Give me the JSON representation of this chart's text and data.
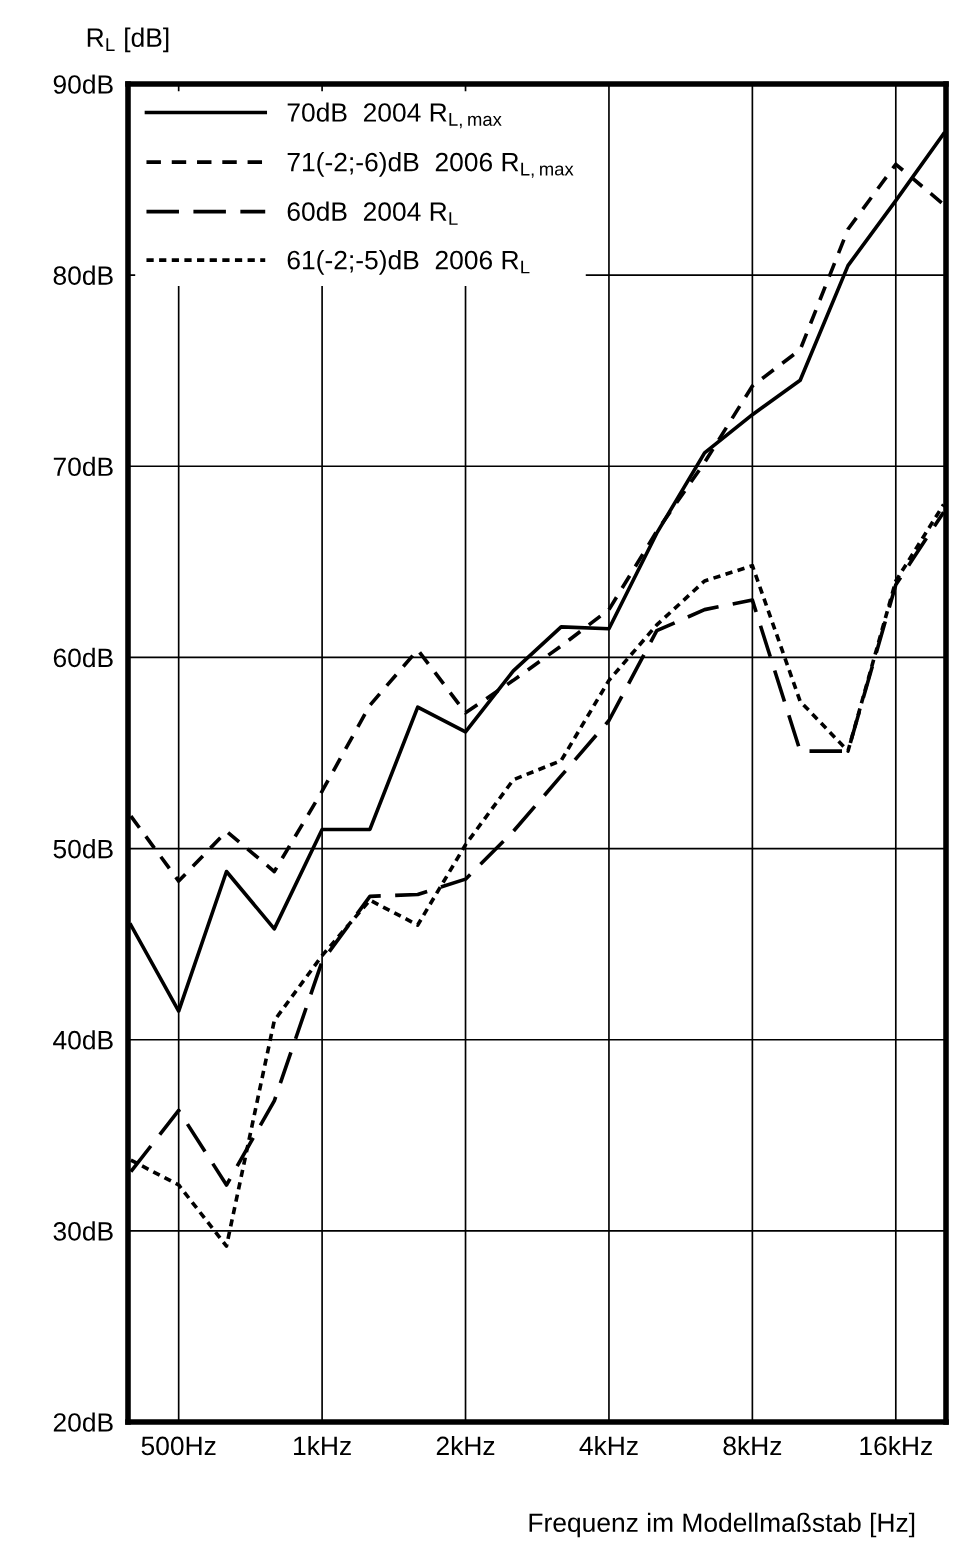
{
  "chart_data": {
    "type": "line",
    "ylabel": "R$_{L}$ [dB]",
    "xlabel": "Frequenz im Modellmaßstab [Hz]",
    "categories": [
      null,
      "500Hz",
      null,
      null,
      "1kHz",
      null,
      null,
      "2kHz",
      null,
      null,
      "4kHz",
      null,
      null,
      "8kHz",
      null,
      null,
      "16kHz",
      null
    ],
    "series": [
      {
        "name": "70dB  2004 R$_{L,max}$",
        "color": "#000000",
        "line_style": "solid",
        "values": [
          46.0,
          41.5,
          48.8,
          45.8,
          51.0,
          51.0,
          57.4,
          56.1,
          59.3,
          61.6,
          61.5,
          66.5,
          70.7,
          72.7,
          74.5,
          80.5,
          83.9,
          87.4
        ]
      },
      {
        "name": "71(-2;-6)dB  2006 R$_{L,max}$",
        "color": "#000000",
        "line_style": "dashed",
        "values": [
          51.7,
          48.3,
          50.9,
          48.8,
          53.0,
          57.5,
          60.4,
          57.1,
          58.8,
          60.6,
          62.5,
          66.6,
          70.2,
          74.2,
          76.1,
          82.4,
          85.8,
          83.7
        ]
      },
      {
        "name": "60dB  2004 R$_{L}$",
        "color": "#000000",
        "line_style": "longdash",
        "values": [
          33.1,
          36.3,
          32.4,
          36.8,
          44.1,
          47.5,
          47.6,
          48.4,
          50.9,
          53.8,
          56.7,
          61.4,
          62.5,
          63.0,
          55.1,
          55.1,
          63.8,
          67.6
        ]
      },
      {
        "name": "61(-2;-5)dB  2006 R$_{L}$",
        "color": "#000000",
        "line_style": "dotted",
        "values": [
          33.7,
          32.4,
          29.2,
          41.0,
          44.4,
          47.3,
          46.0,
          50.2,
          53.6,
          54.6,
          58.8,
          61.7,
          64.0,
          64.8,
          57.7,
          55.1,
          64.0,
          68.0
        ]
      }
    ],
    "ylim": [
      20,
      90
    ],
    "yticks": [
      {
        "value": 20,
        "label": "20dB"
      },
      {
        "value": 30,
        "label": "30dB"
      },
      {
        "value": 40,
        "label": "40dB"
      },
      {
        "value": 50,
        "label": "50dB"
      },
      {
        "value": 60,
        "label": "60dB"
      },
      {
        "value": 70,
        "label": "70dB"
      },
      {
        "value": 80,
        "label": "80dB"
      },
      {
        "value": 90,
        "label": "90dB"
      }
    ],
    "grid": true,
    "legend": "top left"
  }
}
